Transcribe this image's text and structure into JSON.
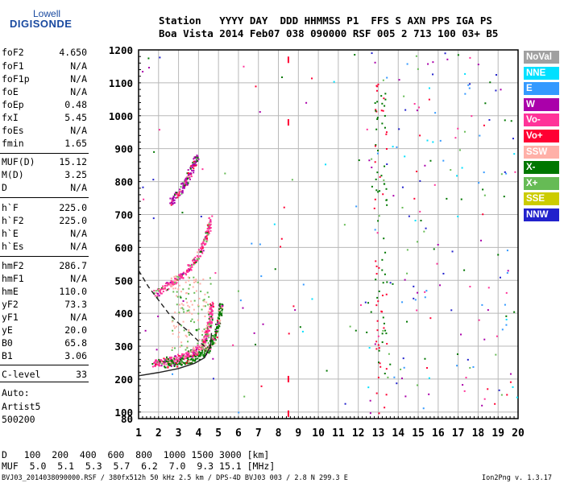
{
  "logo": {
    "line1": "Lowell",
    "line2": "DIGISONDE"
  },
  "header": {
    "line1": "Station   YYYY DAY  DDD HHMMSS P1  FFS S AXN PPS IGA PS",
    "line2": "Boa Vista 2014 Feb07 038 090000 RSF 005 2 713 100 03+ B5"
  },
  "params": [
    {
      "name": "foF2",
      "value": "4.650"
    },
    {
      "name": "foF1",
      "value": "N/A"
    },
    {
      "name": "foF1p",
      "value": "N/A"
    },
    {
      "name": "foE",
      "value": "N/A"
    },
    {
      "name": "foEp",
      "value": "0.48"
    },
    {
      "name": "fxI",
      "value": "5.45"
    },
    {
      "name": "foEs",
      "value": "N/A"
    },
    {
      "name": "fmin",
      "value": "1.65"
    },
    {
      "name": "MUF(D)",
      "value": "15.12"
    },
    {
      "name": "M(D)",
      "value": "3.25"
    },
    {
      "name": "D",
      "value": "N/A"
    },
    {
      "name": "h`F",
      "value": "225.0"
    },
    {
      "name": "h`F2",
      "value": "225.0"
    },
    {
      "name": "h`E",
      "value": "N/A"
    },
    {
      "name": "h`Es",
      "value": "N/A"
    },
    {
      "name": "hmF2",
      "value": "286.7"
    },
    {
      "name": "hmF1",
      "value": "N/A"
    },
    {
      "name": "hmE",
      "value": "110.0"
    },
    {
      "name": "yF2",
      "value": "73.3"
    },
    {
      "name": "yF1",
      "value": "N/A"
    },
    {
      "name": "yE",
      "value": "20.0"
    },
    {
      "name": "B0",
      "value": "65.8"
    },
    {
      "name": "B1",
      "value": "3.06"
    },
    {
      "name": "C-level",
      "value": "33"
    }
  ],
  "notes": [
    "Auto:",
    "Artist5",
    "500200"
  ],
  "legend": [
    {
      "label": "NoVal",
      "color": "#a0a0a0"
    },
    {
      "label": "NNE",
      "color": "#00e0ff"
    },
    {
      "label": "E",
      "color": "#3399ff"
    },
    {
      "label": "W",
      "color": "#aa00aa"
    },
    {
      "label": "Vo-",
      "color": "#ff3399"
    },
    {
      "label": "Vo+",
      "color": "#ff0033"
    },
    {
      "label": "SSW",
      "color": "#ffb0a8"
    },
    {
      "label": "X-",
      "color": "#007700"
    },
    {
      "label": "X+",
      "color": "#66bb55"
    },
    {
      "label": "SSE",
      "color": "#cccc00"
    },
    {
      "label": "NNW",
      "color": "#2222cc"
    }
  ],
  "chart_data": {
    "type": "scatter",
    "xlim": [
      1,
      20
    ],
    "ylim": [
      80,
      1200
    ],
    "x_ticks": [
      1,
      2,
      3,
      4,
      5,
      6,
      7,
      8,
      9,
      10,
      11,
      12,
      13,
      14,
      15,
      16,
      17,
      18,
      19,
      20
    ],
    "y_ticks": [
      80,
      100,
      200,
      300,
      400,
      500,
      600,
      700,
      800,
      900,
      1000,
      1100,
      1200
    ],
    "grid": true,
    "legend_position": "right",
    "traces": [
      {
        "name": "F2 O-trace",
        "color": "#ff3399",
        "points": [
          [
            1.7,
            248
          ],
          [
            2.2,
            255
          ],
          [
            2.8,
            262
          ],
          [
            3.3,
            272
          ],
          [
            3.8,
            285
          ],
          [
            4.2,
            305
          ],
          [
            4.4,
            340
          ],
          [
            4.55,
            380
          ],
          [
            4.65,
            430
          ]
        ]
      },
      {
        "name": "F2 X-trace",
        "color": "#007700",
        "points": [
          [
            2.3,
            245
          ],
          [
            3,
            252
          ],
          [
            3.6,
            262
          ],
          [
            4.1,
            275
          ],
          [
            4.5,
            295
          ],
          [
            4.8,
            330
          ],
          [
            5,
            380
          ],
          [
            5.1,
            430
          ]
        ]
      },
      {
        "name": "second hop",
        "color": "#ff3399",
        "points": [
          [
            1.8,
            460
          ],
          [
            2.4,
            485
          ],
          [
            3,
            510
          ],
          [
            3.6,
            545
          ],
          [
            4.1,
            590
          ],
          [
            4.4,
            640
          ],
          [
            4.6,
            690
          ]
        ]
      },
      {
        "name": "third hop",
        "color": "#aa00aa",
        "points": [
          [
            2.6,
            740
          ],
          [
            3,
            770
          ],
          [
            3.4,
            810
          ],
          [
            3.7,
            850
          ],
          [
            3.9,
            880
          ]
        ]
      }
    ],
    "model_lines": [
      {
        "style": "solid",
        "points": [
          [
            1,
            210
          ],
          [
            2,
            220
          ],
          [
            3,
            232
          ],
          [
            3.8,
            248
          ],
          [
            4.3,
            265
          ],
          [
            4.6,
            300
          ],
          [
            4.65,
            340
          ]
        ]
      },
      {
        "style": "dashed",
        "points": [
          [
            1,
            530
          ],
          [
            1.5,
            480
          ],
          [
            2,
            440
          ],
          [
            2.5,
            400
          ],
          [
            3,
            370
          ],
          [
            3.5,
            345
          ],
          [
            4,
            315
          ],
          [
            4.4,
            295
          ]
        ]
      }
    ],
    "ground_marker": {
      "x": 8.5,
      "heights": [
        1170,
        980,
        200,
        95
      ]
    }
  },
  "footer": {
    "d_row": "D   100  200  400  600  800  1000 1500 3000 [km]",
    "muf_row": "MUF  5.0  5.1  5.3  5.7  6.2  7.0  9.3 15.1 [MHz]",
    "file_info": "BVJ03_2014038090000.RSF / 380fx512h 50 kHz 2.5 km / DPS-4D BVJ03 003 / 2.8 N 299.3 E",
    "version": "Ion2Png v. 1.3.17"
  }
}
